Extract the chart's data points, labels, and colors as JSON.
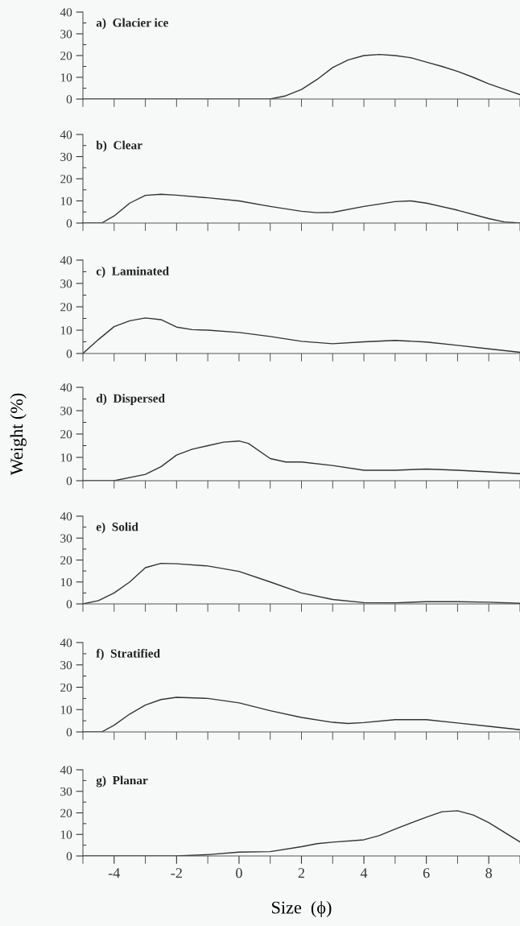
{
  "chart_data": [
    {
      "type": "line",
      "title": "a)  Glacier ice",
      "x": [
        -5,
        0,
        1,
        1.5,
        2,
        2.5,
        3,
        3.5,
        4,
        4.5,
        5,
        5.5,
        6,
        6.5,
        7,
        7.5,
        8,
        8.5,
        9
      ],
      "series": [
        {
          "color": "#333333",
          "values": [
            0,
            0,
            0,
            1.5,
            4.4,
            9,
            14.5,
            18,
            20,
            20.5,
            20,
            19,
            17,
            15,
            12.7,
            10,
            7,
            4.5,
            2
          ]
        }
      ],
      "xlim": [
        -5,
        9
      ],
      "ylim": [
        0,
        40
      ],
      "tick_labels": "y",
      "xticks": [
        {
          "value": -5,
          "label": null
        },
        {
          "value": -4,
          "label": null
        },
        {
          "value": -3,
          "label": null
        },
        {
          "value": -2,
          "label": null
        },
        {
          "value": -1,
          "label": null
        },
        {
          "value": 0,
          "label": null
        },
        {
          "value": 1,
          "label": null
        },
        {
          "value": 2,
          "label": null
        },
        {
          "value": 3,
          "label": null
        },
        {
          "value": 4,
          "label": null
        },
        {
          "value": 5,
          "label": null
        },
        {
          "value": 6,
          "label": null
        },
        {
          "value": 7,
          "label": null
        },
        {
          "value": 8,
          "label": null
        },
        {
          "value": 9,
          "label": null
        }
      ],
      "yticks": [
        0,
        {
          "value": 5,
          "label": null
        },
        10,
        {
          "value": 15,
          "label": null
        },
        20,
        {
          "value": 25,
          "label": null
        },
        30,
        {
          "value": 35,
          "label": null
        },
        40
      ]
    },
    {
      "type": "line",
      "title": "b)  Clear",
      "x": [
        -5,
        -4.4,
        -4,
        -3.5,
        -3,
        -2.5,
        -2,
        -1,
        0,
        1,
        2,
        2.5,
        3,
        4,
        5,
        5.5,
        6,
        7,
        8,
        8.5,
        9
      ],
      "series": [
        {
          "color": "#333333",
          "values": [
            0,
            0,
            3.2,
            9,
            12.5,
            13,
            12.6,
            11.4,
            10,
            7.5,
            5.3,
            4.7,
            4.8,
            7.5,
            9.7,
            10,
            9,
            5.8,
            2,
            0.5,
            0
          ]
        }
      ],
      "xlim": [
        -5,
        9
      ],
      "ylim": [
        0,
        40
      ],
      "tick_labels": "y",
      "xticks": [
        {
          "value": -5,
          "label": null
        },
        {
          "value": -4,
          "label": null
        },
        {
          "value": -3,
          "label": null
        },
        {
          "value": -2,
          "label": null
        },
        {
          "value": -1,
          "label": null
        },
        {
          "value": 0,
          "label": null
        },
        {
          "value": 1,
          "label": null
        },
        {
          "value": 2,
          "label": null
        },
        {
          "value": 3,
          "label": null
        },
        {
          "value": 4,
          "label": null
        },
        {
          "value": 5,
          "label": null
        },
        {
          "value": 6,
          "label": null
        },
        {
          "value": 7,
          "label": null
        },
        {
          "value": 8,
          "label": null
        },
        {
          "value": 9,
          "label": null
        }
      ],
      "yticks": [
        0,
        {
          "value": 5,
          "label": null
        },
        10,
        {
          "value": 15,
          "label": null
        },
        20,
        {
          "value": 25,
          "label": null
        },
        30,
        {
          "value": 35,
          "label": null
        },
        40
      ]
    },
    {
      "type": "line",
      "title": "c)  Laminated",
      "x": [
        -5,
        -4.5,
        -4,
        -3.5,
        -3,
        -2.5,
        -2,
        -1.5,
        -1,
        0,
        1,
        2,
        3,
        4,
        5,
        6,
        7,
        8,
        9
      ],
      "series": [
        {
          "color": "#333333",
          "values": [
            0,
            6,
            11.5,
            14,
            15.2,
            14.5,
            11.3,
            10.2,
            10,
            9,
            7.3,
            5.2,
            4.2,
            5,
            5.6,
            4.9,
            3.5,
            2,
            0.5
          ]
        }
      ],
      "xlim": [
        -5,
        9
      ],
      "ylim": [
        0,
        40
      ],
      "tick_labels": "y",
      "xticks": [
        {
          "value": -5,
          "label": null
        },
        {
          "value": -4,
          "label": null
        },
        {
          "value": -3,
          "label": null
        },
        {
          "value": -2,
          "label": null
        },
        {
          "value": -1,
          "label": null
        },
        {
          "value": 0,
          "label": null
        },
        {
          "value": 1,
          "label": null
        },
        {
          "value": 2,
          "label": null
        },
        {
          "value": 3,
          "label": null
        },
        {
          "value": 4,
          "label": null
        },
        {
          "value": 5,
          "label": null
        },
        {
          "value": 6,
          "label": null
        },
        {
          "value": 7,
          "label": null
        },
        {
          "value": 8,
          "label": null
        },
        {
          "value": 9,
          "label": null
        }
      ],
      "yticks": [
        0,
        {
          "value": 5,
          "label": null
        },
        10,
        {
          "value": 15,
          "label": null
        },
        20,
        {
          "value": 25,
          "label": null
        },
        30,
        {
          "value": 35,
          "label": null
        },
        40
      ]
    },
    {
      "type": "line",
      "title": "d)  Dispersed",
      "ylabel": "Weight (%)",
      "x": [
        -5,
        -4,
        -3,
        -2.5,
        -2,
        -1.5,
        -1,
        -0.5,
        0,
        0.3,
        1,
        1.5,
        2,
        3,
        4,
        5,
        6,
        7,
        8,
        9
      ],
      "series": [
        {
          "color": "#333333",
          "values": [
            0,
            0,
            2.7,
            6,
            11,
            13.5,
            15,
            16.5,
            17,
            16,
            9.5,
            8,
            8,
            6.5,
            4.5,
            4.5,
            5,
            4.5,
            3.8,
            3
          ]
        }
      ],
      "xlim": [
        -5,
        9
      ],
      "ylim": [
        0,
        40
      ],
      "tick_labels": "y",
      "xticks": [
        {
          "value": -5,
          "label": null
        },
        {
          "value": -4,
          "label": null
        },
        {
          "value": -3,
          "label": null
        },
        {
          "value": -2,
          "label": null
        },
        {
          "value": -1,
          "label": null
        },
        {
          "value": 0,
          "label": null
        },
        {
          "value": 1,
          "label": null
        },
        {
          "value": 2,
          "label": null
        },
        {
          "value": 3,
          "label": null
        },
        {
          "value": 4,
          "label": null
        },
        {
          "value": 5,
          "label": null
        },
        {
          "value": 6,
          "label": null
        },
        {
          "value": 7,
          "label": null
        },
        {
          "value": 8,
          "label": null
        },
        {
          "value": 9,
          "label": null
        }
      ],
      "yticks": [
        0,
        {
          "value": 5,
          "label": null
        },
        10,
        {
          "value": 15,
          "label": null
        },
        20,
        {
          "value": 25,
          "label": null
        },
        30,
        {
          "value": 35,
          "label": null
        },
        40
      ]
    },
    {
      "type": "line",
      "title": "e)  Solid",
      "x": [
        -5,
        -4.5,
        -4,
        -3.5,
        -3,
        -2.5,
        -2,
        -1,
        0,
        1,
        2,
        3,
        4,
        5,
        6,
        7,
        8,
        9
      ],
      "series": [
        {
          "color": "#333333",
          "values": [
            0,
            1.5,
            5,
            10,
            16.5,
            18.5,
            18.3,
            17.3,
            14.8,
            10,
            5,
            2,
            0.6,
            0.5,
            1,
            1,
            0.8,
            0.3
          ]
        }
      ],
      "xlim": [
        -5,
        9
      ],
      "ylim": [
        0,
        40
      ],
      "tick_labels": "y",
      "xticks": [
        {
          "value": -5,
          "label": null
        },
        {
          "value": -4,
          "label": null
        },
        {
          "value": -3,
          "label": null
        },
        {
          "value": -2,
          "label": null
        },
        {
          "value": -1,
          "label": null
        },
        {
          "value": 0,
          "label": null
        },
        {
          "value": 1,
          "label": null
        },
        {
          "value": 2,
          "label": null
        },
        {
          "value": 3,
          "label": null
        },
        {
          "value": 4,
          "label": null
        },
        {
          "value": 5,
          "label": null
        },
        {
          "value": 6,
          "label": null
        },
        {
          "value": 7,
          "label": null
        },
        {
          "value": 8,
          "label": null
        },
        {
          "value": 9,
          "label": null
        }
      ],
      "yticks": [
        0,
        {
          "value": 5,
          "label": null
        },
        10,
        {
          "value": 15,
          "label": null
        },
        20,
        {
          "value": 25,
          "label": null
        },
        30,
        {
          "value": 35,
          "label": null
        },
        40
      ]
    },
    {
      "type": "line",
      "title": "f)  Stratified",
      "x": [
        -5,
        -4.4,
        -4,
        -3.5,
        -3,
        -2.5,
        -2,
        -1,
        0,
        1,
        2,
        3,
        3.5,
        4,
        5,
        6,
        7,
        8,
        9
      ],
      "series": [
        {
          "color": "#333333",
          "values": [
            0,
            0,
            3,
            8,
            12,
            14.5,
            15.5,
            15,
            13,
            9.5,
            6.5,
            4.3,
            3.8,
            4.2,
            5.5,
            5.5,
            4,
            2.5,
            1
          ]
        }
      ],
      "xlim": [
        -5,
        9
      ],
      "ylim": [
        0,
        40
      ],
      "tick_labels": "y",
      "xticks": [
        {
          "value": -5,
          "label": null
        },
        {
          "value": -4,
          "label": null
        },
        {
          "value": -3,
          "label": null
        },
        {
          "value": -2,
          "label": null
        },
        {
          "value": -1,
          "label": null
        },
        {
          "value": 0,
          "label": null
        },
        {
          "value": 1,
          "label": null
        },
        {
          "value": 2,
          "label": null
        },
        {
          "value": 3,
          "label": null
        },
        {
          "value": 4,
          "label": null
        },
        {
          "value": 5,
          "label": null
        },
        {
          "value": 6,
          "label": null
        },
        {
          "value": 7,
          "label": null
        },
        {
          "value": 8,
          "label": null
        },
        {
          "value": 9,
          "label": null
        }
      ],
      "yticks": [
        0,
        {
          "value": 5,
          "label": null
        },
        10,
        {
          "value": 15,
          "label": null
        },
        20,
        {
          "value": 25,
          "label": null
        },
        30,
        {
          "value": 35,
          "label": null
        },
        40
      ]
    },
    {
      "type": "line",
      "title": "g)  Planar",
      "xlabel": "Size  (ϕ)",
      "x": [
        -5,
        -2,
        -1,
        0,
        1,
        2,
        2.5,
        3,
        4,
        4.5,
        5,
        6,
        6.5,
        7,
        7.5,
        8,
        9
      ],
      "series": [
        {
          "color": "#333333",
          "values": [
            0,
            0,
            0.6,
            1.8,
            2,
            4.3,
            5.7,
            6.4,
            7.5,
            9.5,
            12.5,
            18,
            20.5,
            21,
            19,
            15.5,
            6.5
          ]
        }
      ],
      "xlim": [
        -5,
        9
      ],
      "ylim": [
        0,
        40
      ],
      "xticks": [
        {
          "value": -5,
          "label": null
        },
        -4,
        {
          "value": -3,
          "label": null
        },
        -2,
        {
          "value": -1,
          "label": null
        },
        0,
        {
          "value": 1,
          "label": null
        },
        2,
        {
          "value": 3,
          "label": null
        },
        4,
        {
          "value": 5,
          "label": null
        },
        6,
        {
          "value": 7,
          "label": null
        },
        8,
        {
          "value": 9,
          "label": null
        }
      ],
      "yticks": [
        0,
        {
          "value": 5,
          "label": null
        },
        10,
        {
          "value": 15,
          "label": null
        },
        20,
        {
          "value": 25,
          "label": null
        },
        30,
        {
          "value": 35,
          "label": null
        },
        40
      ]
    }
  ]
}
